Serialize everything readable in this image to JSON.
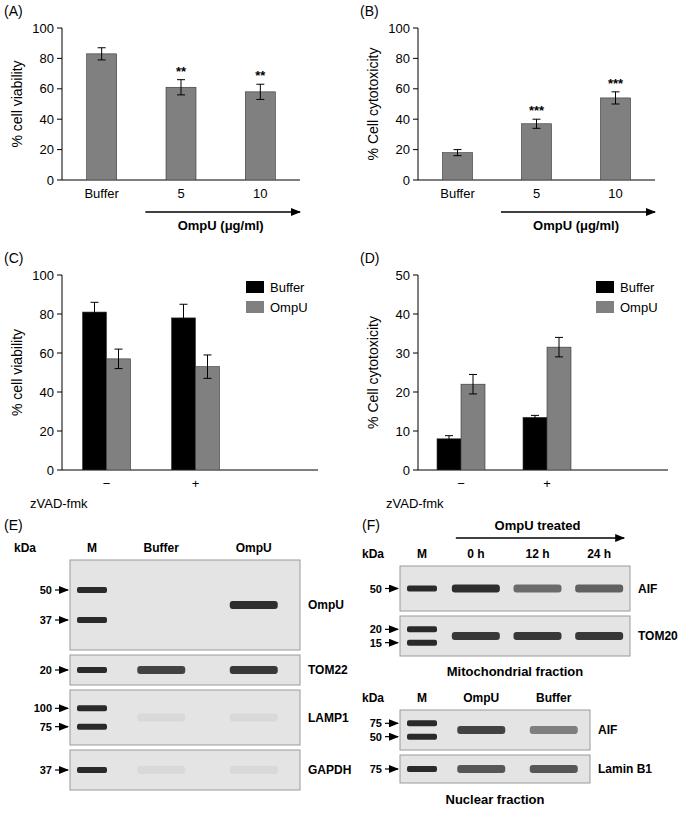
{
  "chart_data": [
    {
      "type": "bar",
      "panel": "(A)",
      "y_label": "% cell viability",
      "group_label": "OmpU (μg/ml)",
      "categories": [
        "Buffer",
        "5",
        "10"
      ],
      "values": [
        83,
        61,
        58
      ],
      "errors": [
        4,
        5,
        5
      ],
      "color": "#808080",
      "ylim": [
        0,
        100
      ],
      "yticks": [
        0,
        20,
        40,
        60,
        80,
        100
      ],
      "annotations": [
        {
          "category": "5",
          "text": "**"
        },
        {
          "category": "10",
          "text": "**"
        }
      ]
    },
    {
      "type": "bar",
      "panel": "(B)",
      "y_label": "% Cell cytotoxicity",
      "group_label": "OmpU (μg/ml)",
      "categories": [
        "Buffer",
        "5",
        "10"
      ],
      "values": [
        18,
        37,
        54
      ],
      "errors": [
        2,
        3,
        4
      ],
      "color": "#808080",
      "ylim": [
        0,
        100
      ],
      "yticks": [
        0,
        20,
        40,
        60,
        80,
        100
      ],
      "annotations": [
        {
          "category": "5",
          "text": "***"
        },
        {
          "category": "10",
          "text": "***"
        }
      ]
    },
    {
      "type": "bar",
      "panel": "(C)",
      "y_label": "% cell viability",
      "x_label": "zVAD-fmk",
      "categories": [
        "−",
        "+"
      ],
      "series": [
        {
          "name": "Buffer",
          "color": "#000000",
          "values": [
            81,
            78
          ],
          "errors": [
            5,
            7
          ]
        },
        {
          "name": "OmpU",
          "color": "#808080",
          "values": [
            57,
            53
          ],
          "errors": [
            5,
            6
          ]
        }
      ],
      "ylim": [
        0,
        100
      ],
      "yticks": [
        0,
        20,
        40,
        60,
        80,
        100
      ],
      "legend": "top-right"
    },
    {
      "type": "bar",
      "panel": "(D)",
      "y_label": "% Cell cytotoxicity",
      "x_label": "zVAD-fmk",
      "categories": [
        "−",
        "+"
      ],
      "series": [
        {
          "name": "Buffer",
          "color": "#000000",
          "values": [
            8,
            13.5
          ],
          "errors": [
            0.8,
            0.5
          ]
        },
        {
          "name": "OmpU",
          "color": "#808080",
          "values": [
            22,
            31.5
          ],
          "errors": [
            2.5,
            2.5
          ]
        }
      ],
      "ylim": [
        0,
        50
      ],
      "yticks": [
        0,
        10,
        20,
        30,
        40,
        50
      ],
      "legend": "top-right"
    }
  ],
  "blots": [
    {
      "panel": "(E)",
      "unit": "kDa",
      "marker_lane": "M",
      "lanes": [
        "Buffer",
        "OmpU"
      ],
      "rows": [
        {
          "name": "OmpU",
          "markers": [
            50,
            37
          ],
          "intensity": [
            0,
            0.9
          ]
        },
        {
          "name": "TOM22",
          "markers": [
            20
          ],
          "intensity": [
            0.8,
            0.85
          ]
        },
        {
          "name": "LAMP1",
          "markers": [
            100,
            75
          ],
          "intensity": [
            0.05,
            0.05
          ]
        },
        {
          "name": "GAPDH",
          "markers": [
            37
          ],
          "intensity": [
            0.05,
            0.05
          ]
        }
      ]
    },
    {
      "panel": "(F)",
      "title": "OmpU treated",
      "unit": "kDa",
      "marker_lane": "M",
      "lanes": [
        "0 h",
        "12 h",
        "24 h"
      ],
      "rows": [
        {
          "name": "AIF",
          "markers": [
            50
          ],
          "intensity": [
            0.9,
            0.6,
            0.65
          ]
        },
        {
          "name": "TOM20",
          "markers": [
            20,
            15
          ],
          "intensity": [
            0.85,
            0.85,
            0.85
          ]
        }
      ],
      "fraction": "Mitochondrial fraction"
    },
    {
      "unit": "kDa",
      "marker_lane": "M",
      "lanes": [
        "OmpU",
        "Buffer"
      ],
      "rows": [
        {
          "name": "AIF",
          "markers": [
            75,
            50
          ],
          "intensity": [
            0.8,
            0.5
          ]
        },
        {
          "name": "Lamin B1",
          "markers": [
            75
          ],
          "intensity": [
            0.7,
            0.7
          ]
        }
      ],
      "fraction": "Nuclear fraction"
    }
  ]
}
